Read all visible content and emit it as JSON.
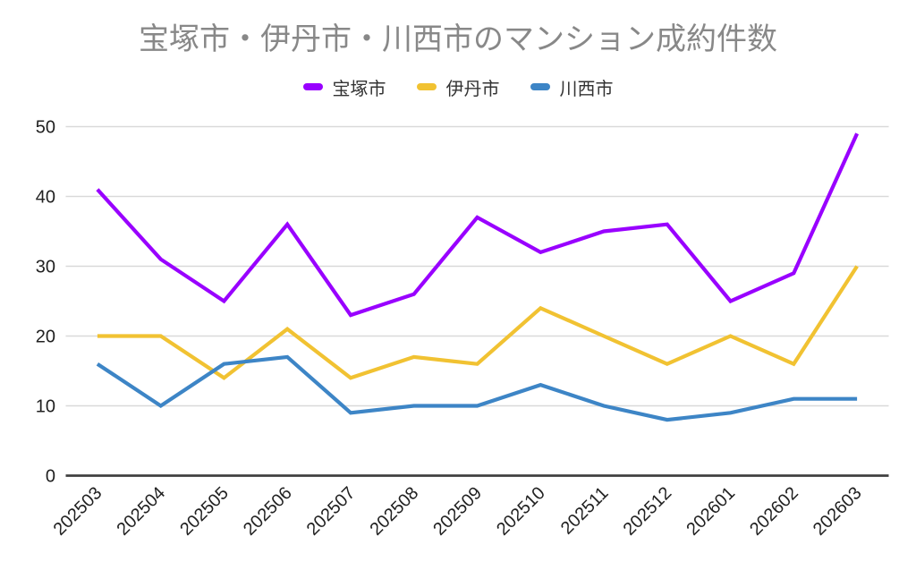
{
  "chart_data": {
    "type": "line",
    "title": "宝塚市・伊丹市・川西市のマンション成約件数",
    "categories": [
      "202503",
      "202504",
      "202505",
      "202506",
      "202507",
      "202508",
      "202509",
      "202510",
      "202511",
      "202512",
      "202601",
      "202602",
      "202603"
    ],
    "series": [
      {
        "name": "宝塚市",
        "color": "#9900ff",
        "values": [
          41,
          31,
          25,
          36,
          23,
          26,
          37,
          32,
          35,
          36,
          25,
          29,
          49
        ]
      },
      {
        "name": "伊丹市",
        "color": "#f1c232",
        "values": [
          20,
          20,
          14,
          21,
          14,
          17,
          16,
          24,
          20,
          16,
          20,
          16,
          30
        ]
      },
      {
        "name": "川西市",
        "color": "#3d85c6",
        "values": [
          16,
          10,
          16,
          17,
          9,
          10,
          10,
          13,
          10,
          8,
          9,
          11,
          11
        ]
      }
    ],
    "xlabel": "",
    "ylabel": "",
    "ylim": [
      0,
      50
    ],
    "y_ticks": [
      0,
      10,
      20,
      30,
      40,
      50
    ],
    "grid": true,
    "legend_position": "top"
  },
  "colors": {
    "background": "#ffffff",
    "title_text": "#888888",
    "legend_text": "#333333",
    "axis_text": "#212121",
    "gridline": "#d9d9d9",
    "axis_line": "#404040"
  }
}
